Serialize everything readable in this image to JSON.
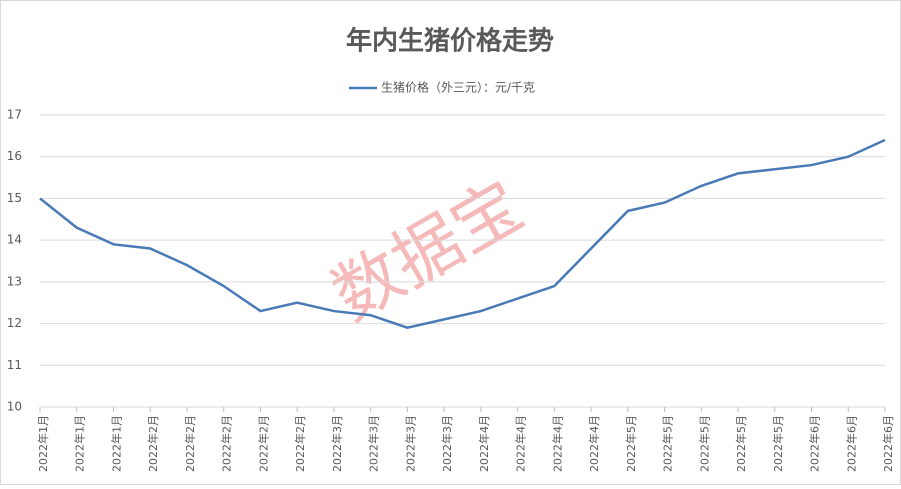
{
  "chart_data": {
    "type": "line",
    "title": "年内生猪价格走势",
    "watermark": "数据宝",
    "categories": [
      "2022年1月",
      "2022年1月",
      "2022年1月",
      "2022年2月",
      "2022年2月",
      "2022年2月",
      "2022年2月",
      "2022年2月",
      "2022年3月",
      "2022年3月",
      "2022年3月",
      "2022年3月",
      "2022年4月",
      "2022年4月",
      "2022年4月",
      "2022年4月",
      "2022年5月",
      "2022年5月",
      "2022年5月",
      "2022年5月",
      "2022年5月",
      "2022年6月",
      "2022年6月",
      "2022年6月"
    ],
    "series": [
      {
        "name": "生猪价格（外三元）：元/千克",
        "color": "#4a7ab5",
        "values": [
          15.0,
          14.3,
          13.9,
          13.8,
          13.4,
          12.9,
          12.3,
          12.5,
          12.3,
          12.2,
          11.9,
          12.1,
          12.3,
          12.6,
          12.9,
          13.8,
          14.7,
          14.9,
          15.3,
          15.6,
          15.7,
          15.8,
          16.0,
          16.4
        ]
      }
    ],
    "ylim": [
      10,
      17
    ],
    "yticks": [
      10,
      11,
      12,
      13,
      14,
      15,
      16,
      17
    ],
    "grid": true,
    "legend": "top"
  }
}
